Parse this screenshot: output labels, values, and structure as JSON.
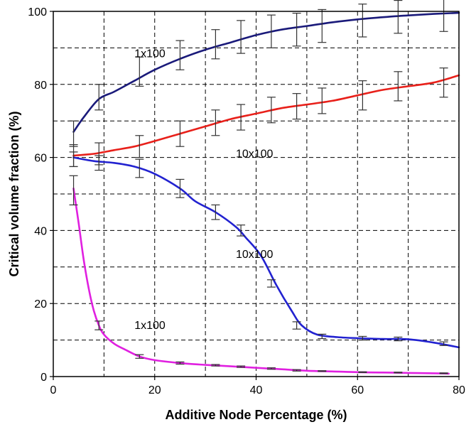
{
  "chart_data": {
    "type": "line",
    "title": "",
    "xlabel": "Additive Node Percentage (%)",
    "ylabel": "Critical volume fraction (%)",
    "xlim": [
      0,
      80
    ],
    "ylim": [
      0,
      100
    ],
    "x_ticks": [
      "0",
      "20",
      "40",
      "60",
      "80"
    ],
    "y_ticks": [
      "0",
      "20",
      "40",
      "60",
      "80",
      "100"
    ],
    "x_minor_grid": [
      10,
      30,
      50,
      70
    ],
    "y_minor_grid": [
      10,
      30,
      50,
      70,
      90
    ],
    "grid": true,
    "grid_style": "dashed",
    "legend": "none",
    "annotations": [
      {
        "text": "1x100",
        "x": 16,
        "y": 87.5
      },
      {
        "text": "10x100",
        "x": 36,
        "y": 60
      },
      {
        "text": "10x100",
        "x": 36,
        "y": 32.5
      },
      {
        "text": "1x100",
        "x": 16,
        "y": 13
      }
    ],
    "series": [
      {
        "color": "#1a1a7a",
        "points": [
          [
            4,
            67
          ],
          [
            6,
            71
          ],
          [
            9,
            76
          ],
          [
            12,
            78
          ],
          [
            16,
            81
          ],
          [
            20,
            84
          ],
          [
            25,
            87
          ],
          [
            30,
            89.5
          ],
          [
            35,
            91.5
          ],
          [
            40,
            93.5
          ],
          [
            45,
            95
          ],
          [
            50,
            96
          ],
          [
            55,
            97
          ],
          [
            60,
            97.8
          ],
          [
            65,
            98.4
          ],
          [
            70,
            98.9
          ],
          [
            75,
            99.3
          ],
          [
            80,
            99.6
          ]
        ],
        "errorbars": [
          [
            4,
            66.5,
            3.5
          ],
          [
            9,
            76.5,
            3.5
          ],
          [
            17,
            83.5,
            4
          ],
          [
            25,
            88,
            4
          ],
          [
            32,
            91,
            4
          ],
          [
            37,
            93,
            4.5
          ],
          [
            43,
            94.5,
            4.5
          ],
          [
            48,
            95,
            4.5
          ],
          [
            53,
            96,
            4.5
          ],
          [
            61,
            97.5,
            4.5
          ],
          [
            68,
            98.5,
            4.5
          ],
          [
            77,
            99,
            4.5
          ]
        ]
      },
      {
        "color": "#e8201a",
        "points": [
          [
            4,
            60.5
          ],
          [
            8,
            61
          ],
          [
            12,
            62
          ],
          [
            16,
            63
          ],
          [
            20,
            64.5
          ],
          [
            25,
            66.5
          ],
          [
            30,
            68.5
          ],
          [
            35,
            70.5
          ],
          [
            40,
            72
          ],
          [
            45,
            73.5
          ],
          [
            50,
            74.5
          ],
          [
            55,
            75.5
          ],
          [
            60,
            77
          ],
          [
            65,
            78.5
          ],
          [
            70,
            79.5
          ],
          [
            75,
            80.5
          ],
          [
            80,
            82.5
          ]
        ],
        "errorbars": [
          [
            4,
            60.5,
            3
          ],
          [
            9,
            61,
            3
          ],
          [
            17,
            63,
            3
          ],
          [
            25,
            66.5,
            3.5
          ],
          [
            32,
            69.5,
            3.5
          ],
          [
            37,
            71,
            3.5
          ],
          [
            43,
            73,
            3.5
          ],
          [
            48,
            74,
            3.5
          ],
          [
            53,
            75.5,
            3.5
          ],
          [
            61,
            77,
            4
          ],
          [
            68,
            79.5,
            4
          ],
          [
            77,
            80.5,
            4
          ]
        ]
      },
      {
        "color": "#2222d0",
        "points": [
          [
            4,
            60
          ],
          [
            8,
            59
          ],
          [
            12,
            58.5
          ],
          [
            16,
            57.5
          ],
          [
            20,
            55.5
          ],
          [
            25,
            51.5
          ],
          [
            28,
            48
          ],
          [
            32,
            45
          ],
          [
            36,
            41
          ],
          [
            38,
            38
          ],
          [
            41,
            33
          ],
          [
            44,
            25
          ],
          [
            47,
            18
          ],
          [
            49,
            14
          ],
          [
            52,
            11.5
          ],
          [
            56,
            10.8
          ],
          [
            60,
            10.5
          ],
          [
            65,
            10.3
          ],
          [
            70,
            10.2
          ],
          [
            75,
            9.3
          ],
          [
            80,
            8
          ]
        ],
        "errorbars": [
          [
            4,
            59.5,
            2
          ],
          [
            9,
            58.5,
            2
          ],
          [
            17,
            57,
            2.5
          ],
          [
            25,
            51.5,
            2.5
          ],
          [
            32,
            45,
            2
          ],
          [
            37,
            40,
            1.5
          ],
          [
            43,
            25.5,
            1
          ],
          [
            48,
            14,
            1
          ],
          [
            53,
            11,
            0.6
          ],
          [
            61,
            10.5,
            0.5
          ],
          [
            68,
            10.3,
            0.5
          ],
          [
            77,
            9,
            0.5
          ]
        ]
      },
      {
        "color": "#e020e0",
        "points": [
          [
            4,
            51.5
          ],
          [
            5,
            42
          ],
          [
            6,
            32
          ],
          [
            7,
            24
          ],
          [
            8,
            18
          ],
          [
            9,
            14
          ],
          [
            10,
            11.5
          ],
          [
            12,
            9
          ],
          [
            14,
            7.5
          ],
          [
            17,
            5.5
          ],
          [
            20,
            4.5
          ],
          [
            25,
            3.7
          ],
          [
            30,
            3.2
          ],
          [
            35,
            2.8
          ],
          [
            40,
            2.4
          ],
          [
            45,
            2.0
          ],
          [
            50,
            1.6
          ],
          [
            55,
            1.4
          ],
          [
            60,
            1.2
          ],
          [
            65,
            1.1
          ],
          [
            70,
            1.0
          ],
          [
            75,
            0.9
          ],
          [
            78,
            0.8
          ]
        ],
        "errorbars": [
          [
            4,
            51,
            4
          ],
          [
            9,
            14,
            1.2
          ],
          [
            17,
            5.5,
            0.5
          ],
          [
            25,
            3.7,
            0.3
          ],
          [
            32,
            3.1,
            0.2
          ],
          [
            37,
            2.7,
            0.2
          ],
          [
            43,
            2.2,
            0.2
          ],
          [
            48,
            1.7,
            0.2
          ],
          [
            53,
            1.5,
            0.1
          ],
          [
            61,
            1.2,
            0.1
          ],
          [
            68,
            1.1,
            0.1
          ],
          [
            77,
            0.9,
            0.1
          ]
        ]
      }
    ]
  }
}
